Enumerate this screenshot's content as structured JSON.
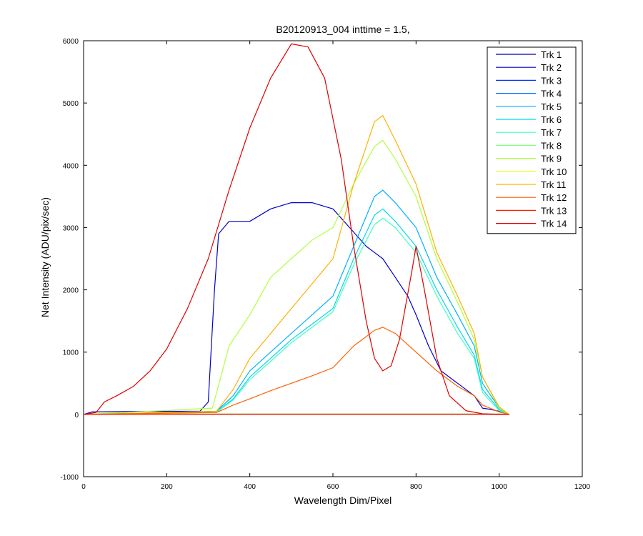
{
  "chart_data": {
    "type": "line",
    "title": "B20120913_004 inttime = 1.5,",
    "xlabel": "Wavelength Dim/Pixel",
    "ylabel": "Net Intensity (ADU/pix/sec)",
    "xlim": [
      0,
      1200
    ],
    "ylim": [
      -1000,
      6000
    ],
    "x_ticks": [
      0,
      200,
      400,
      600,
      800,
      1000,
      1200
    ],
    "y_ticks": [
      -1000,
      0,
      1000,
      2000,
      3000,
      4000,
      5000,
      6000
    ],
    "grid": false,
    "legend_position": "top-right",
    "series": [
      {
        "name": "Trk 1",
        "color": "#00008f",
        "x": [
          0,
          300,
          1000,
          1024
        ],
        "y": [
          0,
          5,
          5,
          0
        ]
      },
      {
        "name": "Trk 2",
        "color": "#0000cc",
        "x": [
          0,
          20,
          100,
          200,
          280,
          300,
          315,
          325,
          350,
          400,
          450,
          500,
          550,
          600,
          640,
          680,
          700,
          720,
          750,
          780,
          800,
          830,
          860,
          900,
          940,
          960,
          980,
          1000,
          1024
        ],
        "y": [
          0,
          40,
          45,
          50,
          50,
          200,
          2000,
          2900,
          3100,
          3100,
          3300,
          3400,
          3400,
          3300,
          3000,
          2700,
          2600,
          2500,
          2200,
          1900,
          1600,
          1100,
          700,
          500,
          300,
          100,
          80,
          50,
          0
        ]
      },
      {
        "name": "Trk 3",
        "color": "#0030ff",
        "x": [
          0,
          300,
          1000,
          1024
        ],
        "y": [
          0,
          3,
          3,
          0
        ]
      },
      {
        "name": "Trk 4",
        "color": "#0070ff",
        "x": [
          0,
          300,
          1000,
          1024
        ],
        "y": [
          0,
          2,
          2,
          0
        ]
      },
      {
        "name": "Trk 5",
        "color": "#00b0ff",
        "x": [
          0,
          320,
          360,
          400,
          450,
          500,
          550,
          600,
          650,
          700,
          720,
          750,
          800,
          850,
          900,
          940,
          960,
          1000,
          1024
        ],
        "y": [
          0,
          50,
          300,
          700,
          1000,
          1300,
          1600,
          1900,
          2700,
          3500,
          3600,
          3400,
          3000,
          2200,
          1600,
          1100,
          500,
          100,
          0
        ]
      },
      {
        "name": "Trk 6",
        "color": "#00d8f0",
        "x": [
          0,
          320,
          360,
          400,
          450,
          500,
          550,
          600,
          650,
          700,
          720,
          750,
          800,
          850,
          900,
          940,
          960,
          1000,
          1024
        ],
        "y": [
          0,
          40,
          250,
          600,
          900,
          1200,
          1450,
          1700,
          2500,
          3200,
          3300,
          3100,
          2700,
          2000,
          1400,
          950,
          400,
          80,
          0
        ]
      },
      {
        "name": "Trk 7",
        "color": "#40ffc0",
        "x": [
          0,
          320,
          360,
          400,
          450,
          500,
          550,
          600,
          650,
          700,
          720,
          750,
          800,
          850,
          900,
          940,
          960,
          1000,
          1024
        ],
        "y": [
          0,
          35,
          230,
          560,
          850,
          1150,
          1400,
          1650,
          2400,
          3050,
          3150,
          3000,
          2600,
          1900,
          1300,
          900,
          350,
          60,
          0
        ]
      },
      {
        "name": "Trk 8",
        "color": "#80ff80",
        "x": [
          0,
          300,
          1000,
          1024
        ],
        "y": [
          0,
          4,
          4,
          0
        ]
      },
      {
        "name": "Trk 9",
        "color": "#b0ff40",
        "x": [
          0,
          310,
          330,
          350,
          400,
          450,
          500,
          550,
          600,
          650,
          700,
          720,
          750,
          800,
          850,
          900,
          940,
          960,
          1000,
          1024
        ],
        "y": [
          0,
          100,
          600,
          1100,
          1600,
          2200,
          2500,
          2800,
          3000,
          3700,
          4300,
          4400,
          4100,
          3500,
          2500,
          1800,
          1200,
          600,
          100,
          0
        ]
      },
      {
        "name": "Trk 10",
        "color": "#e8ff00",
        "x": [
          0,
          300,
          1000,
          1024
        ],
        "y": [
          0,
          6,
          6,
          0
        ]
      },
      {
        "name": "Trk 11",
        "color": "#ffb000",
        "x": [
          0,
          320,
          360,
          400,
          450,
          500,
          550,
          600,
          650,
          700,
          720,
          750,
          800,
          850,
          900,
          940,
          960,
          1000,
          1024
        ],
        "y": [
          0,
          50,
          400,
          900,
          1300,
          1700,
          2100,
          2500,
          3700,
          4700,
          4800,
          4400,
          3700,
          2600,
          1900,
          1300,
          600,
          120,
          0
        ]
      },
      {
        "name": "Trk 12",
        "color": "#ff6000",
        "x": [
          0,
          320,
          360,
          400,
          450,
          500,
          550,
          600,
          650,
          700,
          720,
          750,
          800,
          850,
          900,
          940,
          960,
          1000,
          1024
        ],
        "y": [
          0,
          30,
          150,
          250,
          380,
          500,
          620,
          750,
          1100,
          1350,
          1400,
          1300,
          1000,
          700,
          450,
          300,
          150,
          40,
          0
        ]
      },
      {
        "name": "Trk 13",
        "color": "#ff2000",
        "x": [
          0,
          300,
          1000,
          1024
        ],
        "y": [
          0,
          3,
          3,
          0
        ]
      },
      {
        "name": "Trk 14",
        "color": "#e00000",
        "x": [
          0,
          30,
          50,
          80,
          120,
          160,
          200,
          250,
          300,
          350,
          400,
          450,
          500,
          540,
          580,
          620,
          650,
          680,
          700,
          720,
          740,
          760,
          790,
          800,
          820,
          850,
          880,
          920,
          960,
          1000,
          1024
        ],
        "y": [
          0,
          30,
          200,
          300,
          450,
          700,
          1050,
          1700,
          2500,
          3600,
          4600,
          5400,
          5950,
          5900,
          5400,
          4100,
          2700,
          1500,
          900,
          700,
          780,
          1200,
          2300,
          2700,
          2000,
          900,
          300,
          60,
          10,
          0,
          0
        ]
      }
    ]
  }
}
